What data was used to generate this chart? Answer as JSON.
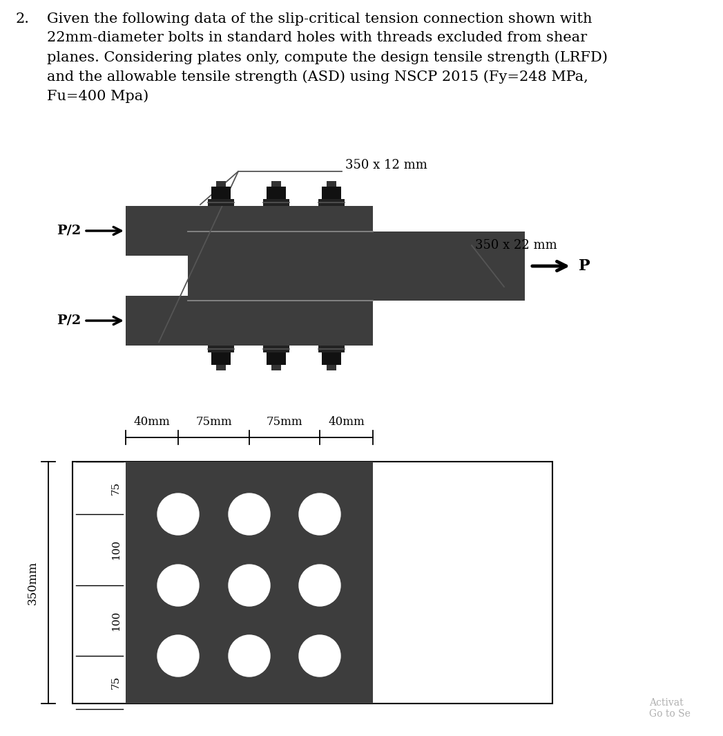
{
  "background_color": "#ffffff",
  "text_color": "#000000",
  "plate_color": "#3d3d3d",
  "bolt_body_color": "#2a2a2a",
  "bolt_top_color": "#1a1a1a",
  "hole_color": "#ffffff",
  "title_number": "2.",
  "title_text": "Given the following data of the slip-critical tension connection shown with\n22mm-diameter bolts in standard holes with threads excluded from shear\nplanes. Considering plates only, compute the design tensile strength (LRFD)\nand the allowable tensile strength (ASD) using NSCP 2015 (Fy=248 MPa,\nFu=400 Mpa)",
  "label_350x12": "350 x 12 mm",
  "label_350x22": "350 x 22 mm",
  "label_P": "P",
  "label_P2_top": "P/2",
  "label_P2_bot": "P/2",
  "dim_40mm_left": "40mm",
  "dim_75mm_1": "75mm",
  "dim_75mm_2": "75mm",
  "dim_40mm_right": "40mm",
  "dim_350mm": "350mm",
  "dim_75_top": "75",
  "dim_100_1": "100",
  "dim_100_2": "100",
  "dim_75_bot": "75",
  "watermark": "Activat\nGo to Se",
  "separator_color": "#888888",
  "dim_line_color": "#000000"
}
